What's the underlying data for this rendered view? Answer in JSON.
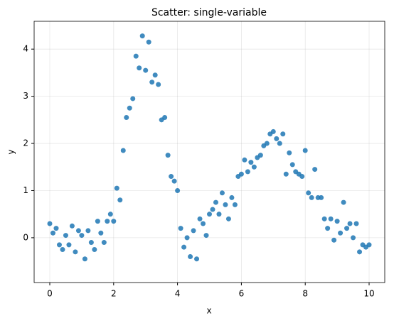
{
  "chart_data": {
    "type": "scatter",
    "title": "Scatter: single-variable",
    "x_label": "x",
    "y_label": "y",
    "series": [
      {
        "name": "y",
        "color": "#1f77b4",
        "x": [
          0,
          0.1,
          0.2,
          0.3,
          0.4,
          0.5,
          0.6,
          0.7,
          0.8,
          0.9,
          1,
          1.1,
          1.2,
          1.3,
          1.4,
          1.5,
          1.6,
          1.7,
          1.8,
          1.9,
          2,
          2.1,
          2.2,
          2.3,
          2.4,
          2.5,
          2.6,
          2.7,
          2.8,
          2.9,
          3,
          3.1,
          3.2,
          3.3,
          3.4,
          3.5,
          3.6,
          3.7,
          3.8,
          3.9,
          4,
          4.1,
          4.2,
          4.3,
          4.4,
          4.5,
          4.6,
          4.7,
          4.8,
          4.9,
          5,
          5.1,
          5.2,
          5.3,
          5.4,
          5.5,
          5.6,
          5.7,
          5.8,
          5.9,
          6,
          6.1,
          6.2,
          6.3,
          6.4,
          6.5,
          6.6,
          6.7,
          6.8,
          6.9,
          7,
          7.1,
          7.2,
          7.3,
          7.4,
          7.5,
          7.6,
          7.7,
          7.8,
          7.9,
          8,
          8.1,
          8.2,
          8.3,
          8.4,
          8.5,
          8.6,
          8.7,
          8.8,
          8.9,
          9,
          9.1,
          9.2,
          9.3,
          9.4,
          9.5,
          9.6,
          9.7,
          9.8,
          9.9,
          10
        ],
        "values": [
          0.3,
          0.1,
          0.2,
          -0.15,
          -0.25,
          0.05,
          -0.15,
          0.25,
          -0.3,
          0.15,
          0.05,
          -0.45,
          0.15,
          -0.1,
          -0.25,
          0.35,
          0.1,
          -0.1,
          0.35,
          0.5,
          0.35,
          1.05,
          0.8,
          1.85,
          2.55,
          2.75,
          2.95,
          3.85,
          3.6,
          4.28,
          3.55,
          4.15,
          3.3,
          3.45,
          3.25,
          2.5,
          2.55,
          1.75,
          1.3,
          1.2,
          1.0,
          0.2,
          -0.2,
          0.0,
          -0.4,
          0.15,
          -0.45,
          0.4,
          0.3,
          0.05,
          0.5,
          0.6,
          0.75,
          0.5,
          0.95,
          0.7,
          0.4,
          0.85,
          0.7,
          1.3,
          1.35,
          1.65,
          1.4,
          1.6,
          1.5,
          1.7,
          1.75,
          1.95,
          2.0,
          2.2,
          2.25,
          2.1,
          2.0,
          2.2,
          1.35,
          1.8,
          1.55,
          1.4,
          1.35,
          1.3,
          1.85,
          0.95,
          0.85,
          1.45,
          0.85,
          0.85,
          0.4,
          0.2,
          0.4,
          -0.05,
          0.35,
          0.1,
          0.75,
          0.2,
          0.3,
          0.0,
          0.3,
          -0.3,
          -0.15,
          -0.2,
          -0.15
        ]
      }
    ],
    "xlim": [
      -0.49,
      10.49
    ],
    "ylim": [
      -0.95,
      4.59
    ],
    "xticks": [
      0,
      2,
      4,
      6,
      8,
      10
    ],
    "yticks": [
      0,
      1,
      2,
      3,
      4
    ],
    "grid": true
  }
}
